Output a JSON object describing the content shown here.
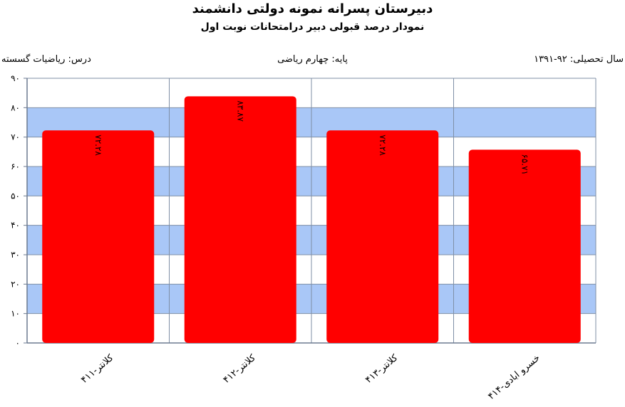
{
  "header": {
    "title": "دبیرستان پسرانه نمونه دولتی دانشمند",
    "subtitle": "نمودار درصد قبولی دبیر درامتحانات نوبت اول"
  },
  "meta": {
    "year": "سال تحصیلی: ۹۲-۱۳۹۱",
    "grade": "پایه: چهارم ریاضی",
    "subject": "درس: ریاضیات گسسته"
  },
  "colors": {
    "bar": "#ff0000",
    "band": "#a9c7f7",
    "plot_bg": "#ffffff",
    "grid": "#7f8fa6"
  },
  "chart_data": {
    "type": "bar",
    "categories": [
      "کلانتر-۴۱۱",
      "کلانتر-۴۱۲",
      "کلانتر-۴۱۳",
      "خسرو ابادی-۴۱۴"
    ],
    "values": [
      72.28,
      83.87,
      72.28,
      65.71
    ],
    "data_labels": [
      "۷۲.۲۸",
      "۸۳.۸۷",
      "۷۲.۲۸",
      "۶۵.۷۱"
    ],
    "ylim": [
      0,
      90
    ],
    "yticks": [
      "۰",
      "۱۰",
      "۲۰",
      "۳۰",
      "۴۰",
      "۵۰",
      "۶۰",
      "۷۰",
      "۸۰",
      "۹۰"
    ],
    "grid": true
  }
}
